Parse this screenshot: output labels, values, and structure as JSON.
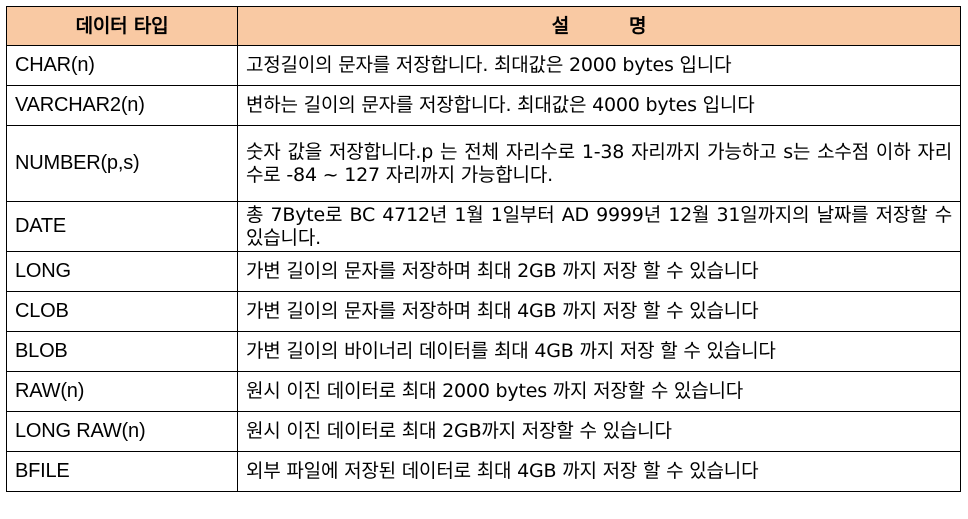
{
  "header": {
    "type_col": "데이터 타입",
    "desc_col_part1": "설",
    "desc_col_part2": "명"
  },
  "rows": [
    {
      "type": "CHAR(n)",
      "desc": "고정길이의 문자를 저장합니다. 최대값은 2000 bytes 입니다"
    },
    {
      "type": "VARCHAR2(n)",
      "desc": "변하는 길이의 문자를 저장합니다. 최대값은 4000 bytes 입니다"
    },
    {
      "type": "NUMBER(p,s)",
      "desc": "숫자 값을 저장합니다.p 는 전체 자리수로 1-38 자리까지 가능하고 s는 소수점 이하 자리수로 -84 ~ 127 자리까지 가능합니다."
    },
    {
      "type": "DATE",
      "desc": "총 7Byte로 BC 4712년 1월 1일부터 AD 9999년 12월 31일까지의 날짜를 저장할 수 있습니다."
    },
    {
      "type": "LONG",
      "desc": "가변 길이의 문자를 저장하며 최대 2GB 까지 저장 할 수 있습니다"
    },
    {
      "type": "CLOB",
      "desc": "가변 길이의 문자를 저장하며 최대 4GB 까지 저장 할 수 있습니다"
    },
    {
      "type": "BLOB",
      "desc": "가변 길이의 바이너리 데이터를 최대 4GB 까지 저장 할 수 있습니다"
    },
    {
      "type": "RAW(n)",
      "desc": "원시 이진 데이터로 최대 2000 bytes 까지 저장할 수 있습니다"
    },
    {
      "type": "LONG RAW(n)",
      "desc": "원시 이진 데이터로 최대 2GB까지 저장할 수 있습니다"
    },
    {
      "type": "BFILE",
      "desc": "외부 파일에 저장된 데이터로 최대 4GB 까지 저장 할 수 있습니다"
    }
  ]
}
